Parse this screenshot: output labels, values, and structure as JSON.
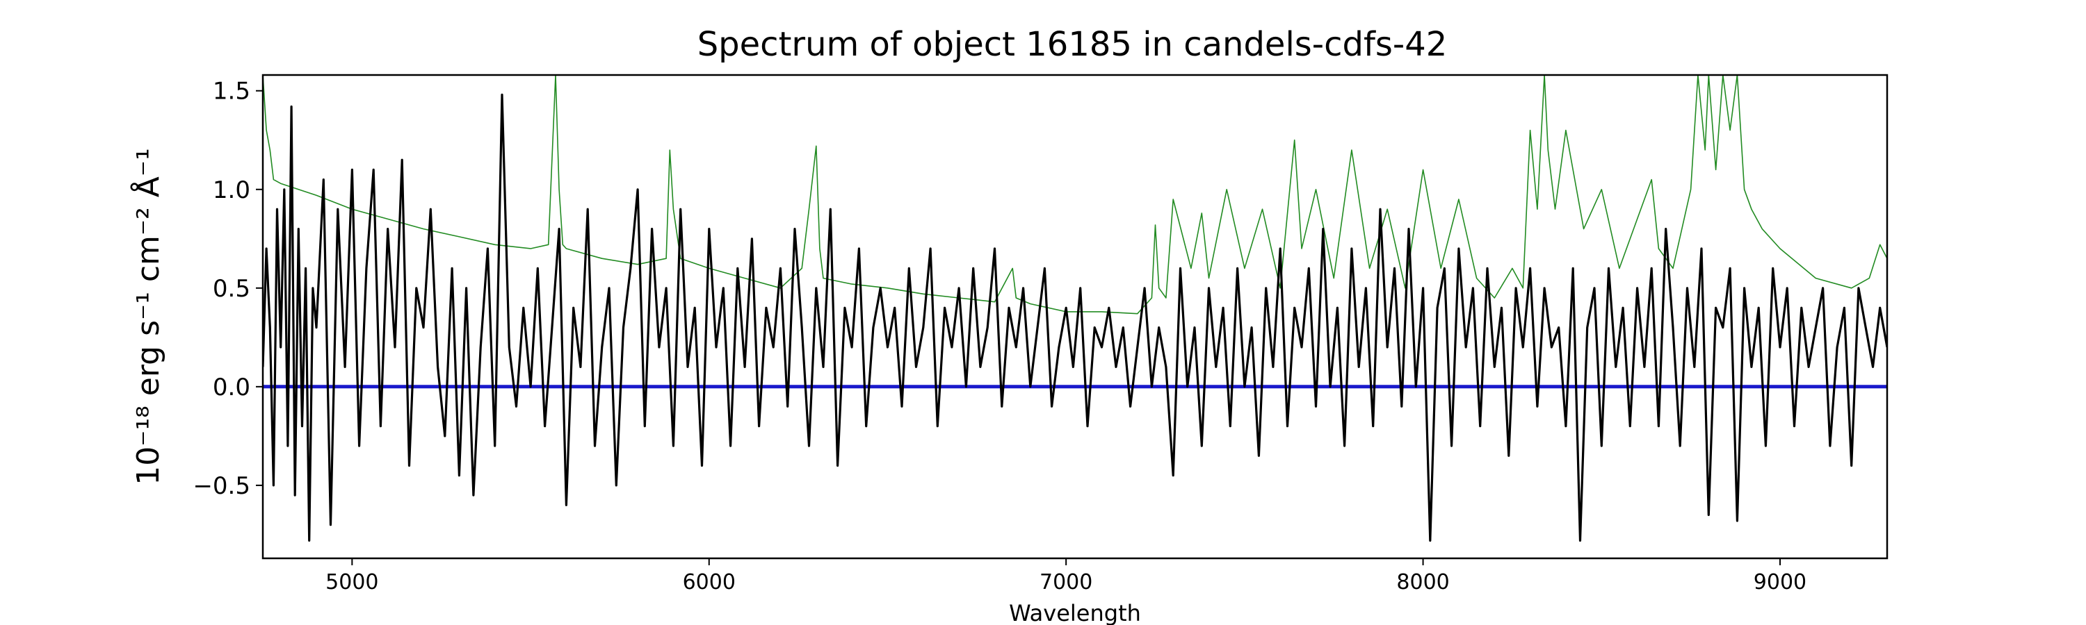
{
  "chart_data": {
    "type": "line",
    "title": "Spectrum of object 16185 in candels-cdfs-42",
    "xlabel": "Wavelength",
    "ylabel": "10⁻¹⁸ erg s⁻¹ cm⁻² Å⁻¹",
    "xlim": [
      4750,
      9300
    ],
    "ylim": [
      -0.87,
      1.58
    ],
    "x_ticks": [
      5000,
      6000,
      7000,
      8000,
      9000
    ],
    "y_ticks": [
      -0.5,
      0.0,
      0.5,
      1.0,
      1.5
    ],
    "y_tick_labels": [
      "−0.5",
      "0.0",
      "0.5",
      "1.0",
      "1.5"
    ],
    "grid": false,
    "legend": "none",
    "series": [
      {
        "color": "#1a1acc",
        "role": "zero-baseline",
        "x": [
          4750,
          9300
        ],
        "values": [
          0.0,
          0.0
        ]
      },
      {
        "color": "#228b22",
        "role": "error-spectrum",
        "x": [
          4750,
          4760,
          4770,
          4780,
          4800,
          4850,
          4900,
          5000,
          5100,
          5200,
          5300,
          5400,
          5500,
          5550,
          5570,
          5580,
          5590,
          5600,
          5700,
          5800,
          5880,
          5890,
          5900,
          5920,
          6000,
          6100,
          6200,
          6260,
          6280,
          6300,
          6310,
          6320,
          6400,
          6500,
          6600,
          6700,
          6800,
          6850,
          6860,
          6900,
          7000,
          7100,
          7200,
          7240,
          7250,
          7260,
          7280,
          7300,
          7350,
          7380,
          7400,
          7450,
          7500,
          7550,
          7600,
          7640,
          7660,
          7700,
          7750,
          7800,
          7850,
          7900,
          7950,
          8000,
          8050,
          8100,
          8150,
          8200,
          8250,
          8280,
          8300,
          8320,
          8340,
          8350,
          8370,
          8400,
          8450,
          8500,
          8550,
          8600,
          8640,
          8660,
          8700,
          8750,
          8770,
          8790,
          8800,
          8820,
          8840,
          8860,
          8880,
          8900,
          8920,
          8950,
          9000,
          9100,
          9200,
          9250,
          9280,
          9300
        ],
        "values": [
          1.58,
          1.3,
          1.2,
          1.05,
          1.03,
          1.0,
          0.97,
          0.9,
          0.85,
          0.8,
          0.76,
          0.72,
          0.7,
          0.72,
          1.58,
          1.0,
          0.72,
          0.7,
          0.65,
          0.62,
          0.65,
          1.2,
          0.9,
          0.65,
          0.6,
          0.55,
          0.5,
          0.6,
          0.9,
          1.22,
          0.7,
          0.55,
          0.52,
          0.5,
          0.47,
          0.45,
          0.43,
          0.6,
          0.45,
          0.42,
          0.38,
          0.38,
          0.37,
          0.45,
          0.82,
          0.5,
          0.45,
          0.95,
          0.6,
          0.88,
          0.55,
          1.0,
          0.6,
          0.9,
          0.5,
          1.25,
          0.7,
          1.0,
          0.55,
          1.2,
          0.6,
          0.9,
          0.5,
          1.1,
          0.6,
          0.95,
          0.55,
          0.45,
          0.6,
          0.5,
          1.3,
          0.9,
          1.58,
          1.2,
          0.9,
          1.3,
          0.8,
          1.0,
          0.6,
          0.85,
          1.05,
          0.7,
          0.6,
          1.0,
          1.58,
          1.2,
          1.58,
          1.1,
          1.58,
          1.3,
          1.58,
          1.0,
          0.9,
          0.8,
          0.7,
          0.55,
          0.5,
          0.55,
          0.72,
          0.65
        ]
      },
      {
        "color": "#000000",
        "role": "flux-spectrum",
        "x": [
          4750,
          4760,
          4770,
          4780,
          4790,
          4800,
          4810,
          4820,
          4830,
          4840,
          4850,
          4860,
          4870,
          4880,
          4890,
          4900,
          4920,
          4940,
          4960,
          4980,
          5000,
          5020,
          5040,
          5060,
          5080,
          5100,
          5120,
          5140,
          5160,
          5180,
          5200,
          5220,
          5240,
          5260,
          5280,
          5300,
          5320,
          5340,
          5360,
          5380,
          5400,
          5420,
          5440,
          5460,
          5480,
          5500,
          5520,
          5540,
          5560,
          5580,
          5600,
          5620,
          5640,
          5660,
          5680,
          5700,
          5720,
          5740,
          5760,
          5780,
          5800,
          5820,
          5840,
          5860,
          5880,
          5900,
          5920,
          5940,
          5960,
          5980,
          6000,
          6020,
          6040,
          6060,
          6080,
          6100,
          6120,
          6140,
          6160,
          6180,
          6200,
          6220,
          6240,
          6260,
          6280,
          6300,
          6320,
          6340,
          6360,
          6380,
          6400,
          6420,
          6440,
          6460,
          6480,
          6500,
          6520,
          6540,
          6560,
          6580,
          6600,
          6620,
          6640,
          6660,
          6680,
          6700,
          6720,
          6740,
          6760,
          6780,
          6800,
          6820,
          6840,
          6860,
          6880,
          6900,
          6920,
          6940,
          6960,
          6980,
          7000,
          7020,
          7040,
          7060,
          7080,
          7100,
          7120,
          7140,
          7160,
          7180,
          7200,
          7220,
          7240,
          7260,
          7280,
          7300,
          7320,
          7340,
          7360,
          7380,
          7400,
          7420,
          7440,
          7460,
          7480,
          7500,
          7520,
          7540,
          7560,
          7580,
          7600,
          7620,
          7640,
          7660,
          7680,
          7700,
          7720,
          7740,
          7760,
          7780,
          7800,
          7820,
          7840,
          7860,
          7880,
          7900,
          7920,
          7940,
          7960,
          7980,
          8000,
          8020,
          8040,
          8060,
          8080,
          8100,
          8120,
          8140,
          8160,
          8180,
          8200,
          8220,
          8240,
          8260,
          8280,
          8300,
          8320,
          8340,
          8360,
          8380,
          8400,
          8420,
          8440,
          8460,
          8480,
          8500,
          8520,
          8540,
          8560,
          8580,
          8600,
          8620,
          8640,
          8660,
          8680,
          8700,
          8720,
          8740,
          8760,
          8780,
          8800,
          8820,
          8840,
          8860,
          8880,
          8900,
          8920,
          8940,
          8960,
          8980,
          9000,
          9020,
          9040,
          9060,
          9080,
          9100,
          9120,
          9140,
          9160,
          9180,
          9200,
          9220,
          9240,
          9260,
          9280,
          9300
        ],
        "values": [
          0.1,
          0.7,
          0.3,
          -0.5,
          0.9,
          0.2,
          1.0,
          -0.3,
          1.42,
          -0.55,
          0.8,
          -0.2,
          0.6,
          -0.78,
          0.5,
          0.3,
          1.05,
          -0.7,
          0.9,
          0.1,
          1.1,
          -0.3,
          0.6,
          1.1,
          -0.2,
          0.8,
          0.2,
          1.15,
          -0.4,
          0.5,
          0.3,
          0.9,
          0.1,
          -0.25,
          0.6,
          -0.45,
          0.5,
          -0.55,
          0.2,
          0.7,
          -0.3,
          1.48,
          0.2,
          -0.1,
          0.4,
          0.0,
          0.6,
          -0.2,
          0.3,
          0.8,
          -0.6,
          0.4,
          0.1,
          0.9,
          -0.3,
          0.2,
          0.5,
          -0.5,
          0.3,
          0.6,
          1.0,
          -0.2,
          0.8,
          0.2,
          0.5,
          -0.3,
          0.9,
          0.1,
          0.4,
          -0.4,
          0.8,
          0.2,
          0.5,
          -0.3,
          0.6,
          0.1,
          0.75,
          -0.2,
          0.4,
          0.2,
          0.6,
          -0.1,
          0.8,
          0.3,
          -0.3,
          0.5,
          0.1,
          0.9,
          -0.4,
          0.4,
          0.2,
          0.7,
          -0.2,
          0.3,
          0.5,
          0.2,
          0.4,
          -0.1,
          0.6,
          0.1,
          0.3,
          0.7,
          -0.2,
          0.4,
          0.2,
          0.5,
          0.0,
          0.6,
          0.1,
          0.3,
          0.7,
          -0.1,
          0.4,
          0.2,
          0.5,
          0.0,
          0.3,
          0.6,
          -0.1,
          0.2,
          0.4,
          0.1,
          0.5,
          -0.2,
          0.3,
          0.2,
          0.4,
          0.1,
          0.3,
          -0.1,
          0.2,
          0.5,
          0.0,
          0.3,
          0.1,
          -0.45,
          0.6,
          0.0,
          0.3,
          -0.3,
          0.5,
          0.1,
          0.4,
          -0.2,
          0.6,
          0.0,
          0.3,
          -0.35,
          0.5,
          0.1,
          0.7,
          -0.2,
          0.4,
          0.2,
          0.6,
          -0.1,
          0.8,
          0.0,
          0.4,
          -0.3,
          0.7,
          0.1,
          0.5,
          -0.2,
          0.9,
          0.2,
          0.6,
          -0.1,
          0.8,
          0.0,
          0.5,
          -0.78,
          0.4,
          0.6,
          -0.3,
          0.7,
          0.2,
          0.5,
          -0.2,
          0.6,
          0.1,
          0.4,
          -0.35,
          0.5,
          0.2,
          0.6,
          -0.1,
          0.5,
          0.2,
          0.3,
          -0.2,
          0.6,
          -0.78,
          0.3,
          0.5,
          -0.3,
          0.6,
          0.1,
          0.4,
          -0.2,
          0.5,
          0.1,
          0.6,
          -0.2,
          0.8,
          0.3,
          -0.3,
          0.5,
          0.1,
          0.7,
          -0.65,
          0.4,
          0.3,
          0.6,
          -0.68,
          0.5,
          0.1,
          0.4,
          -0.3,
          0.6,
          0.2,
          0.5,
          -0.2,
          0.4,
          0.1,
          0.3,
          0.5,
          -0.3,
          0.2,
          0.4,
          -0.4,
          0.5,
          0.3,
          0.1,
          0.4,
          0.2
        ]
      }
    ]
  }
}
